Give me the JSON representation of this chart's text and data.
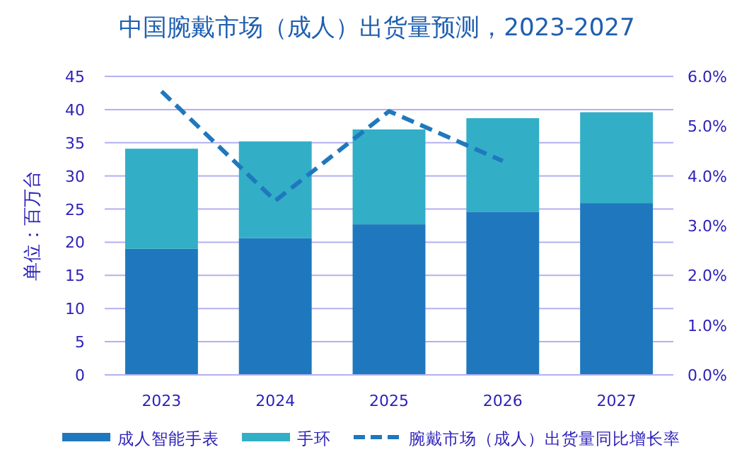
{
  "chart_data": {
    "type": "bar",
    "title": "中国腕戴市场（成人）出货量预测，2023-2027",
    "ylabel": "单位：百万台",
    "categories": [
      "2023",
      "2024",
      "2025",
      "2026",
      "2027"
    ],
    "stacked": true,
    "series": [
      {
        "name": "成人智能手表",
        "color": "#1f78be",
        "values": [
          19.0,
          20.6,
          22.7,
          24.6,
          25.9
        ]
      },
      {
        "name": "手环",
        "color": "#33aec7",
        "values": [
          15.1,
          14.6,
          14.3,
          14.1,
          13.7
        ]
      },
      {
        "name": "腕戴市场（成人）出货量同比增长率",
        "type": "line",
        "axis": "y2",
        "line_style": "dashed",
        "color": "#1f78be",
        "values": [
          5.7,
          3.5,
          5.3,
          4.3,
          null
        ]
      }
    ],
    "ylim": [
      0,
      45
    ],
    "yticks": [
      0,
      5,
      10,
      15,
      20,
      25,
      30,
      35,
      40,
      45
    ],
    "y2lim": [
      0,
      6
    ],
    "y2ticks": [
      {
        "value": 0,
        "label": "0.0%"
      },
      {
        "value": 1,
        "label": "1.0%"
      },
      {
        "value": 2,
        "label": "2.0%"
      },
      {
        "value": 3,
        "label": "3.0%"
      },
      {
        "value": 4,
        "label": "4.0%"
      },
      {
        "value": 5,
        "label": "5.0%"
      },
      {
        "value": 6,
        "label": "6.0%"
      }
    ],
    "grid": "y",
    "legend": "bottom"
  }
}
